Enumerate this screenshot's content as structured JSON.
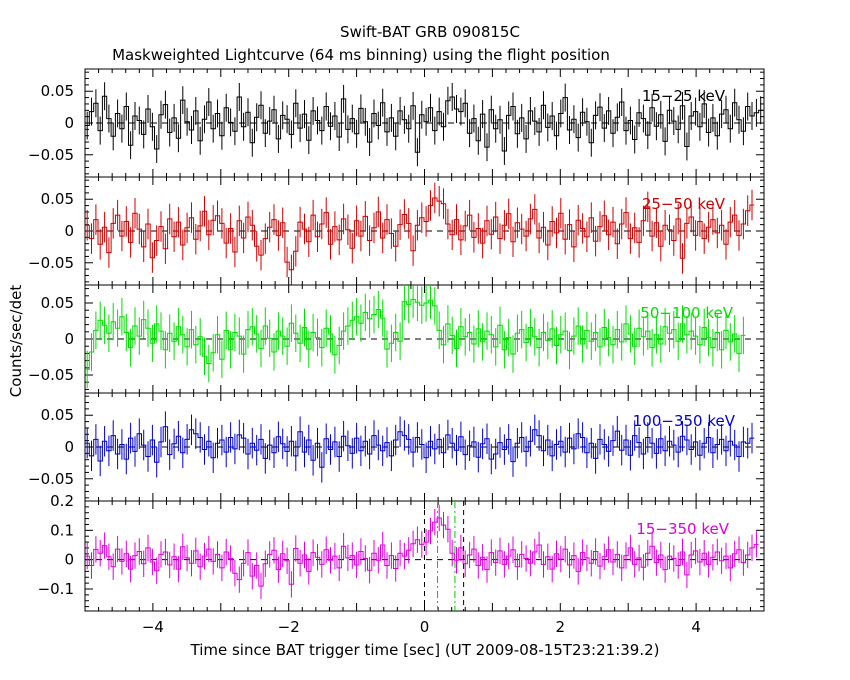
{
  "title": "Swift-BAT GRB 090815C",
  "subtitle": "Maskweighted Lightcurve (64 ms binning) using the flight position",
  "xlabel": "Time since BAT trigger time [sec] (UT 2009-08-15T23:21:39.2)",
  "ylabel": "Counts/sec/det",
  "chart_data": {
    "type": "line",
    "title": "Swift-BAT GRB 090815C",
    "subtitle": "Maskweighted Lightcurve (64 ms binning) using the flight position",
    "xlabel": "Time since BAT trigger time [sec] (UT 2009-08-15T23:21:39.2)",
    "ylabel": "Counts/sec/det",
    "xlim": [
      -5,
      5
    ],
    "bin_width": 0.064,
    "x_ticks": [
      -4,
      -2,
      0,
      2,
      4
    ],
    "x_tick_labels": [
      "−4",
      "−2",
      "0",
      "2",
      "4"
    ],
    "reference_lines": {
      "black_dashed_x": [
        0,
        0.576
      ],
      "green_dashdot_x": [
        0.192,
        0.448
      ]
    },
    "panels": [
      {
        "label": "15−25 keV",
        "color": "#000000",
        "ylim": [
          -0.085,
          0.085
        ],
        "y_ticks": [
          -0.05,
          0,
          0.05
        ],
        "y_tick_labels": [
          "−0.05",
          "0",
          "0.05"
        ],
        "err": 0.022,
        "values": [
          -0.004,
          0.018,
          0.031,
          -0.012,
          0.042,
          0.007,
          -0.021,
          0.015,
          -0.009,
          0.026,
          -0.035,
          0.011,
          0.004,
          -0.018,
          0.022,
          -0.006,
          -0.041,
          0.013,
          0.029,
          -0.015,
          0.008,
          -0.024,
          0.036,
          0.002,
          -0.011,
          0.019,
          -0.028,
          0.006,
          0.033,
          -0.009,
          0.015,
          -0.02,
          0.024,
          0.001,
          -0.013,
          0.041,
          -0.006,
          0.017,
          -0.031,
          0.009,
          0.028,
          -0.016,
          0.003,
          0.021,
          -0.025,
          0.012,
          0.006,
          -0.018,
          0.031,
          -0.008,
          0.014,
          -0.027,
          0.019,
          0.004,
          -0.012,
          0.026,
          -0.005,
          0.011,
          -0.022,
          0.038,
          -0.01,
          0.007,
          -0.017,
          0.023,
          0.002,
          -0.03,
          0.015,
          -0.004,
          0.032,
          -0.014,
          0.008,
          -0.021,
          0.019,
          0.005,
          -0.009,
          0.027,
          -0.046,
          0.013,
          0.002,
          0.024,
          -0.012,
          0.018,
          -0.006,
          0.035,
          0.041,
          0.022,
          0.018,
          0.031,
          -0.016,
          0.007,
          -0.028,
          0.014,
          -0.038,
          0.021,
          -0.009,
          0.005,
          -0.044,
          0.012,
          0.026,
          -0.017,
          0.008,
          -0.025,
          0.019,
          0.003,
          -0.014,
          0.028,
          -0.007,
          0.011,
          -0.02,
          0.015,
          0.04,
          -0.011,
          0.006,
          -0.023,
          0.017,
          0.002,
          -0.031,
          0.012,
          0.025,
          -0.008,
          0.019,
          -0.016,
          0.009,
          0.033,
          -0.012,
          0.004,
          -0.026,
          0.016,
          0.007,
          -0.019,
          0.024,
          -0.005,
          0.013,
          -0.029,
          0.02,
          0.003,
          -0.01,
          0.027,
          -0.037,
          0.011,
          0.018,
          -0.006,
          0.03,
          -0.015,
          0.008,
          -0.02,
          0.014,
          0.021,
          -0.009,
          0.032,
          0.005,
          -0.013,
          0.026,
          0.011,
          0.016,
          0.02
        ]
      },
      {
        "label": "25−50 keV",
        "color": "#cc0000",
        "ylim": [
          -0.085,
          0.085
        ],
        "y_ticks": [
          -0.05,
          0,
          0.05
        ],
        "y_tick_labels": [
          "−0.05",
          "0",
          "0.05"
        ],
        "err": 0.024,
        "values": [
          0.009,
          -0.012,
          0.018,
          -0.021,
          0.006,
          -0.034,
          0.012,
          0.025,
          -0.008,
          0.015,
          -0.018,
          0.028,
          0.003,
          -0.025,
          0.011,
          -0.042,
          -0.015,
          0.007,
          -0.028,
          0.019,
          -0.009,
          0.014,
          -0.022,
          0.005,
          0.021,
          -0.013,
          0.008,
          0.031,
          -0.006,
          0.017,
          0.024,
          0.012,
          -0.019,
          0.004,
          -0.033,
          0.016,
          -0.011,
          0.022,
          0.009,
          -0.024,
          -0.038,
          -0.012,
          0.006,
          0.018,
          -0.007,
          0.013,
          -0.049,
          -0.061,
          -0.032,
          0.014,
          0.003,
          -0.017,
          0.025,
          -0.009,
          0.011,
          0.029,
          -0.021,
          0.007,
          -0.014,
          0.019,
          0.002,
          -0.027,
          0.016,
          -0.008,
          0.023,
          -0.015,
          0.005,
          0.03,
          -0.011,
          0.018,
          -0.004,
          -0.024,
          0.01,
          0.026,
          0.012,
          -0.031,
          0.009,
          0.021,
          0.015,
          0.04,
          0.052,
          0.047,
          0.043,
          0.011,
          -0.006,
          0.018,
          -0.014,
          0.008,
          0.025,
          -0.01,
          0.004,
          -0.019,
          0.016,
          -0.005,
          0.022,
          -0.012,
          0.009,
          0.027,
          -0.017,
          0.013,
          0.003,
          -0.008,
          0.019,
          0.034,
          -0.011,
          0.006,
          -0.022,
          0.015,
          -0.003,
          0.028,
          -0.013,
          0.01,
          -0.025,
          0.017,
          0.004,
          -0.009,
          0.021,
          -0.016,
          0.007,
          0.024,
          -0.006,
          0.014,
          -0.02,
          0.011,
          0.029,
          -0.012,
          0.005,
          -0.018,
          0.016,
          0.038,
          -0.008,
          0.013,
          -0.024,
          0.009,
          0.002,
          -0.015,
          0.019,
          -0.043,
          0.012,
          0.022,
          -0.007,
          0.015,
          -0.012,
          0.006,
          0.018,
          -0.003,
          0.009,
          -0.021,
          0.014,
          0.025,
          -0.007,
          0.011,
          0.032,
          0.041
        ]
      },
      {
        "label": "50−100 keV",
        "color": "#00dd00",
        "ylim": [
          -0.075,
          0.075
        ],
        "y_ticks": [
          -0.05,
          0,
          0.05
        ],
        "y_tick_labels": [
          "−0.05",
          "0",
          "0.05"
        ],
        "err": 0.026,
        "values": [
          -0.042,
          -0.018,
          0.012,
          0.026,
          0.019,
          0.008,
          0.024,
          0.015,
          0.031,
          0.009,
          -0.012,
          0.018,
          0.004,
          0.027,
          0.015,
          -0.006,
          0.021,
          0.011,
          -0.015,
          0.008,
          -0.003,
          0.017,
          0.006,
          -0.011,
          0.013,
          -0.008,
          0.003,
          -0.024,
          -0.034,
          -0.019,
          0.006,
          -0.028,
          0.012,
          -0.015,
          0.009,
          0.004,
          -0.021,
          0.013,
          0.017,
          0.007,
          -0.013,
          0.018,
          0.001,
          -0.018,
          0.011,
          0.004,
          -0.01,
          0.022,
          0.008,
          -0.006,
          0.016,
          -0.014,
          0.009,
          0.002,
          -0.012,
          0.015,
          0.007,
          -0.022,
          -0.009,
          0.011,
          0.018,
          0.026,
          0.031,
          0.022,
          0.037,
          0.028,
          0.034,
          0.041,
          0.029,
          -0.014,
          -0.006,
          0.009,
          -0.003,
          0.052,
          0.048,
          0.055,
          0.051,
          0.047,
          0.05,
          0.054,
          0.046,
          0.012,
          -0.008,
          0.021,
          0.005,
          -0.013,
          0.017,
          0.003,
          0.009,
          -0.007,
          0.014,
          -0.004,
          0.011,
          0.006,
          -0.011,
          0.019,
          -0.015,
          0.002,
          -0.021,
          0.008,
          0.013,
          -0.005,
          0.016,
          0.003,
          -0.012,
          0.009,
          -0.002,
          0.014,
          -0.009,
          0.006,
          0.011,
          -0.016,
          0.004,
          0.018,
          -0.007,
          0.012,
          -0.003,
          0.009,
          -0.011,
          0.016,
          0.002,
          -0.008,
          0.013,
          -0.004,
          0.021,
          0.007,
          -0.01,
          0.015,
          0.003,
          0.011,
          -0.012,
          0.006,
          -0.007,
          0.017,
          0.008,
          0.013,
          -0.003,
          0.021,
          0.006,
          0.011,
          0.004,
          -0.008,
          0.016,
          0.002,
          -0.012,
          0.009,
          -0.015,
          0.012,
          -0.004,
          0.007,
          -0.02,
          0.005
        ]
      },
      {
        "label": "100−350 keV",
        "color": "#0000cc",
        "ylim": [
          -0.085,
          0.085
        ],
        "y_ticks": [
          -0.05,
          0,
          0.05
        ],
        "y_tick_labels": [
          "−0.05",
          "0",
          "0.05"
        ],
        "err": 0.024,
        "values": [
          0.006,
          -0.014,
          0.012,
          -0.022,
          0.009,
          -0.006,
          0.018,
          -0.011,
          0.004,
          -0.019,
          0.014,
          -0.007,
          0.021,
          0.003,
          -0.015,
          0.011,
          -0.024,
          0.008,
          0.032,
          -0.012,
          0.005,
          0.017,
          -0.009,
          0.012,
          0.027,
          0.021,
          0.015,
          -0.004,
          0.009,
          -0.017,
          0.006,
          0.011,
          -0.008,
          0.015,
          -0.003,
          0.019,
          0.014,
          -0.011,
          0.006,
          -0.005,
          0.012,
          -0.018,
          0.003,
          -0.009,
          0.016,
          0.005,
          -0.007,
          0.009,
          -0.014,
          0.024,
          -0.008,
          0.011,
          -0.021,
          0.006,
          -0.032,
          0.013,
          -0.004,
          0.008,
          -0.015,
          0.017,
          0.002,
          -0.01,
          0.014,
          -0.006,
          0.009,
          -0.011,
          0.018,
          0.003,
          -0.006,
          0.007,
          -0.014,
          0.011,
          0.024,
          0.018,
          0.012,
          -0.008,
          0.015,
          0.004,
          -0.017,
          0.009,
          -0.003,
          0.012,
          -0.009,
          0.019,
          0.006,
          -0.005,
          0.016,
          -0.012,
          0.002,
          0.008,
          -0.016,
          0.005,
          0.013,
          -0.019,
          -0.011,
          0.007,
          -0.004,
          0.012,
          -0.023,
          0.006,
          0.015,
          -0.007,
          0.009,
          0.027,
          0.018,
          -0.006,
          0.011,
          -0.014,
          0.004,
          0.009,
          -0.008,
          0.014,
          -0.003,
          0.021,
          0.015,
          -0.009,
          0.006,
          -0.018,
          0.012,
          0.004,
          -0.007,
          0.01,
          0.025,
          -0.005,
          0.011,
          -0.013,
          0.018,
          0.007,
          -0.011,
          0.015,
          0.006,
          -0.01,
          0.013,
          -0.006,
          0.009,
          0.003,
          -0.008,
          0.017,
          0.011,
          -0.004,
          0.008,
          -0.013,
          0.006,
          0.015,
          -0.009,
          0.004,
          0.012,
          -0.006,
          0.009,
          0.003,
          -0.015,
          0.008,
          0.006,
          0.014
        ]
      },
      {
        "label": "15−350 keV",
        "color": "#dd00dd",
        "ylim": [
          -0.175,
          0.2
        ],
        "y_ticks": [
          -0.1,
          0,
          0.1,
          0.2
        ],
        "y_tick_labels": [
          "−0.1",
          "0",
          "0.1",
          "0.2"
        ],
        "err": 0.045,
        "values": [
          0.012,
          -0.02,
          0.035,
          0.022,
          0.048,
          0.01,
          -0.024,
          0.036,
          -0.006,
          0.02,
          -0.032,
          0.014,
          0.028,
          -0.014,
          0.04,
          -0.008,
          -0.038,
          0.018,
          0.026,
          -0.018,
          0.01,
          -0.032,
          0.044,
          0.006,
          -0.012,
          0.03,
          -0.024,
          0.012,
          0.036,
          -0.006,
          0.018,
          -0.028,
          0.026,
          0.004,
          -0.046,
          -0.068,
          -0.012,
          0.024,
          -0.056,
          -0.02,
          -0.09,
          -0.014,
          0.018,
          0.032,
          -0.034,
          0.02,
          -0.004,
          -0.084,
          0.038,
          -0.012,
          0.016,
          -0.04,
          0.024,
          0.008,
          -0.016,
          0.034,
          -0.002,
          0.012,
          -0.028,
          0.046,
          0.006,
          0.014,
          -0.018,
          0.028,
          0.004,
          -0.036,
          0.022,
          -0.002,
          0.05,
          -0.02,
          0.014,
          -0.03,
          0.022,
          0.012,
          0.032,
          0.054,
          0.068,
          0.052,
          0.06,
          0.098,
          0.128,
          0.142,
          0.118,
          0.104,
          0.022,
          -0.002,
          0.04,
          -0.014,
          0.016,
          0.036,
          -0.02,
          0.008,
          -0.034,
          0.024,
          -0.01,
          0.03,
          -0.016,
          0.012,
          0.034,
          -0.024,
          0.018,
          0.004,
          -0.012,
          0.026,
          0.05,
          -0.016,
          0.01,
          -0.032,
          0.02,
          0.002,
          0.036,
          -0.018,
          0.014,
          -0.04,
          0.024,
          0.006,
          -0.012,
          0.028,
          -0.022,
          0.01,
          0.034,
          -0.008,
          0.018,
          -0.028,
          0.014,
          0.04,
          -0.016,
          0.006,
          -0.026,
          0.022,
          0.046,
          -0.01,
          0.016,
          -0.034,
          0.012,
          0.004,
          -0.02,
          0.026,
          -0.052,
          0.016,
          0.03,
          -0.008,
          0.022,
          -0.016,
          0.008,
          0.026,
          -0.004,
          0.012,
          -0.028,
          0.02,
          0.034,
          -0.01,
          0.016,
          0.04,
          0.052
        ]
      }
    ]
  }
}
